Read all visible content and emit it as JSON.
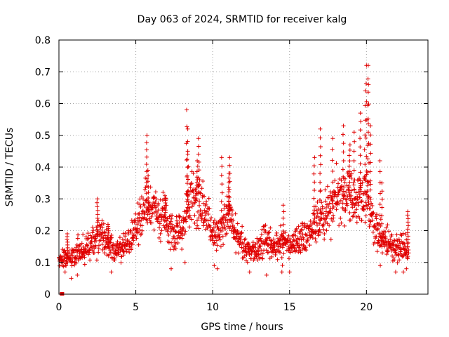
{
  "chart_data": {
    "type": "scatter",
    "title": "Day 063 of 2024, SRMTID for receiver kalg",
    "xlabel": "GPS time / hours",
    "ylabel": "SRMTID / TECUs",
    "xlim": [
      0,
      24
    ],
    "ylim": [
      0,
      0.8
    ],
    "xticks": [
      0,
      5,
      10,
      15,
      20
    ],
    "xtick_labels": [
      "0",
      "5",
      "10",
      "15",
      "20"
    ],
    "yticks": [
      0,
      0.1,
      0.2,
      0.3,
      0.4,
      0.5,
      0.6,
      0.7,
      0.8
    ],
    "ytick_labels": [
      "0",
      "0.1",
      "0.2",
      "0.3",
      "0.4",
      "0.5",
      "0.6",
      "0.7",
      "0.8"
    ],
    "grid": true,
    "marker": "plus",
    "color": "#e00000",
    "x_range_data": [
      0,
      22.75
    ],
    "trend": [
      {
        "x": 0.0,
        "y": 0.11
      },
      {
        "x": 0.5,
        "y": 0.12
      },
      {
        "x": 1.0,
        "y": 0.12
      },
      {
        "x": 1.5,
        "y": 0.14
      },
      {
        "x": 2.0,
        "y": 0.15
      },
      {
        "x": 2.5,
        "y": 0.19
      },
      {
        "x": 3.0,
        "y": 0.17
      },
      {
        "x": 3.5,
        "y": 0.14
      },
      {
        "x": 4.0,
        "y": 0.13
      },
      {
        "x": 4.5,
        "y": 0.16
      },
      {
        "x": 5.0,
        "y": 0.21
      },
      {
        "x": 5.5,
        "y": 0.28
      },
      {
        "x": 6.0,
        "y": 0.26
      },
      {
        "x": 6.5,
        "y": 0.25
      },
      {
        "x": 7.0,
        "y": 0.24
      },
      {
        "x": 7.5,
        "y": 0.19
      },
      {
        "x": 8.0,
        "y": 0.21
      },
      {
        "x": 8.5,
        "y": 0.3
      },
      {
        "x": 9.0,
        "y": 0.3
      },
      {
        "x": 9.5,
        "y": 0.26
      },
      {
        "x": 10.0,
        "y": 0.19
      },
      {
        "x": 10.5,
        "y": 0.2
      },
      {
        "x": 11.0,
        "y": 0.24
      },
      {
        "x": 11.5,
        "y": 0.19
      },
      {
        "x": 12.0,
        "y": 0.16
      },
      {
        "x": 12.5,
        "y": 0.13
      },
      {
        "x": 13.0,
        "y": 0.15
      },
      {
        "x": 13.5,
        "y": 0.17
      },
      {
        "x": 14.0,
        "y": 0.15
      },
      {
        "x": 14.5,
        "y": 0.16
      },
      {
        "x": 15.0,
        "y": 0.15
      },
      {
        "x": 15.5,
        "y": 0.17
      },
      {
        "x": 16.0,
        "y": 0.18
      },
      {
        "x": 16.5,
        "y": 0.22
      },
      {
        "x": 17.0,
        "y": 0.24
      },
      {
        "x": 17.5,
        "y": 0.26
      },
      {
        "x": 18.0,
        "y": 0.3
      },
      {
        "x": 18.5,
        "y": 0.31
      },
      {
        "x": 19.0,
        "y": 0.3
      },
      {
        "x": 19.5,
        "y": 0.3
      },
      {
        "x": 20.0,
        "y": 0.32
      },
      {
        "x": 20.5,
        "y": 0.22
      },
      {
        "x": 21.0,
        "y": 0.17
      },
      {
        "x": 21.5,
        "y": 0.16
      },
      {
        "x": 22.0,
        "y": 0.14
      },
      {
        "x": 22.75,
        "y": 0.15
      }
    ],
    "peaks": [
      {
        "x": 0.55,
        "y": 0.19
      },
      {
        "x": 2.5,
        "y": 0.3
      },
      {
        "x": 3.2,
        "y": 0.22
      },
      {
        "x": 5.7,
        "y": 0.5
      },
      {
        "x": 5.8,
        "y": 0.39
      },
      {
        "x": 6.9,
        "y": 0.31
      },
      {
        "x": 8.3,
        "y": 0.58
      },
      {
        "x": 8.4,
        "y": 0.52
      },
      {
        "x": 8.35,
        "y": 0.45
      },
      {
        "x": 9.1,
        "y": 0.49
      },
      {
        "x": 9.0,
        "y": 0.42
      },
      {
        "x": 10.6,
        "y": 0.43
      },
      {
        "x": 11.1,
        "y": 0.43
      },
      {
        "x": 11.05,
        "y": 0.38
      },
      {
        "x": 14.6,
        "y": 0.28
      },
      {
        "x": 16.6,
        "y": 0.43
      },
      {
        "x": 17.0,
        "y": 0.52
      },
      {
        "x": 17.8,
        "y": 0.49
      },
      {
        "x": 18.5,
        "y": 0.53
      },
      {
        "x": 18.9,
        "y": 0.47
      },
      {
        "x": 19.2,
        "y": 0.51
      },
      {
        "x": 19.6,
        "y": 0.57
      },
      {
        "x": 19.9,
        "y": 0.64
      },
      {
        "x": 20.0,
        "y": 0.72
      },
      {
        "x": 20.1,
        "y": 0.72
      },
      {
        "x": 20.15,
        "y": 0.66
      },
      {
        "x": 20.25,
        "y": 0.53
      },
      {
        "x": 20.9,
        "y": 0.42
      },
      {
        "x": 21.0,
        "y": 0.35
      },
      {
        "x": 22.7,
        "y": 0.26
      }
    ],
    "lows": [
      {
        "x": 0.4,
        "y": 0.07
      },
      {
        "x": 0.8,
        "y": 0.05
      },
      {
        "x": 1.2,
        "y": 0.06
      },
      {
        "x": 3.4,
        "y": 0.07
      },
      {
        "x": 7.3,
        "y": 0.08
      },
      {
        "x": 8.2,
        "y": 0.1
      },
      {
        "x": 10.1,
        "y": 0.09
      },
      {
        "x": 10.3,
        "y": 0.08
      },
      {
        "x": 12.4,
        "y": 0.07
      },
      {
        "x": 13.5,
        "y": 0.06
      },
      {
        "x": 14.5,
        "y": 0.07
      },
      {
        "x": 15.0,
        "y": 0.07
      },
      {
        "x": 20.9,
        "y": 0.09
      },
      {
        "x": 21.9,
        "y": 0.07
      },
      {
        "x": 22.4,
        "y": 0.07
      },
      {
        "x": 22.6,
        "y": 0.08
      }
    ],
    "outliers": [
      {
        "x": 0.2,
        "y": 0.0
      }
    ]
  }
}
